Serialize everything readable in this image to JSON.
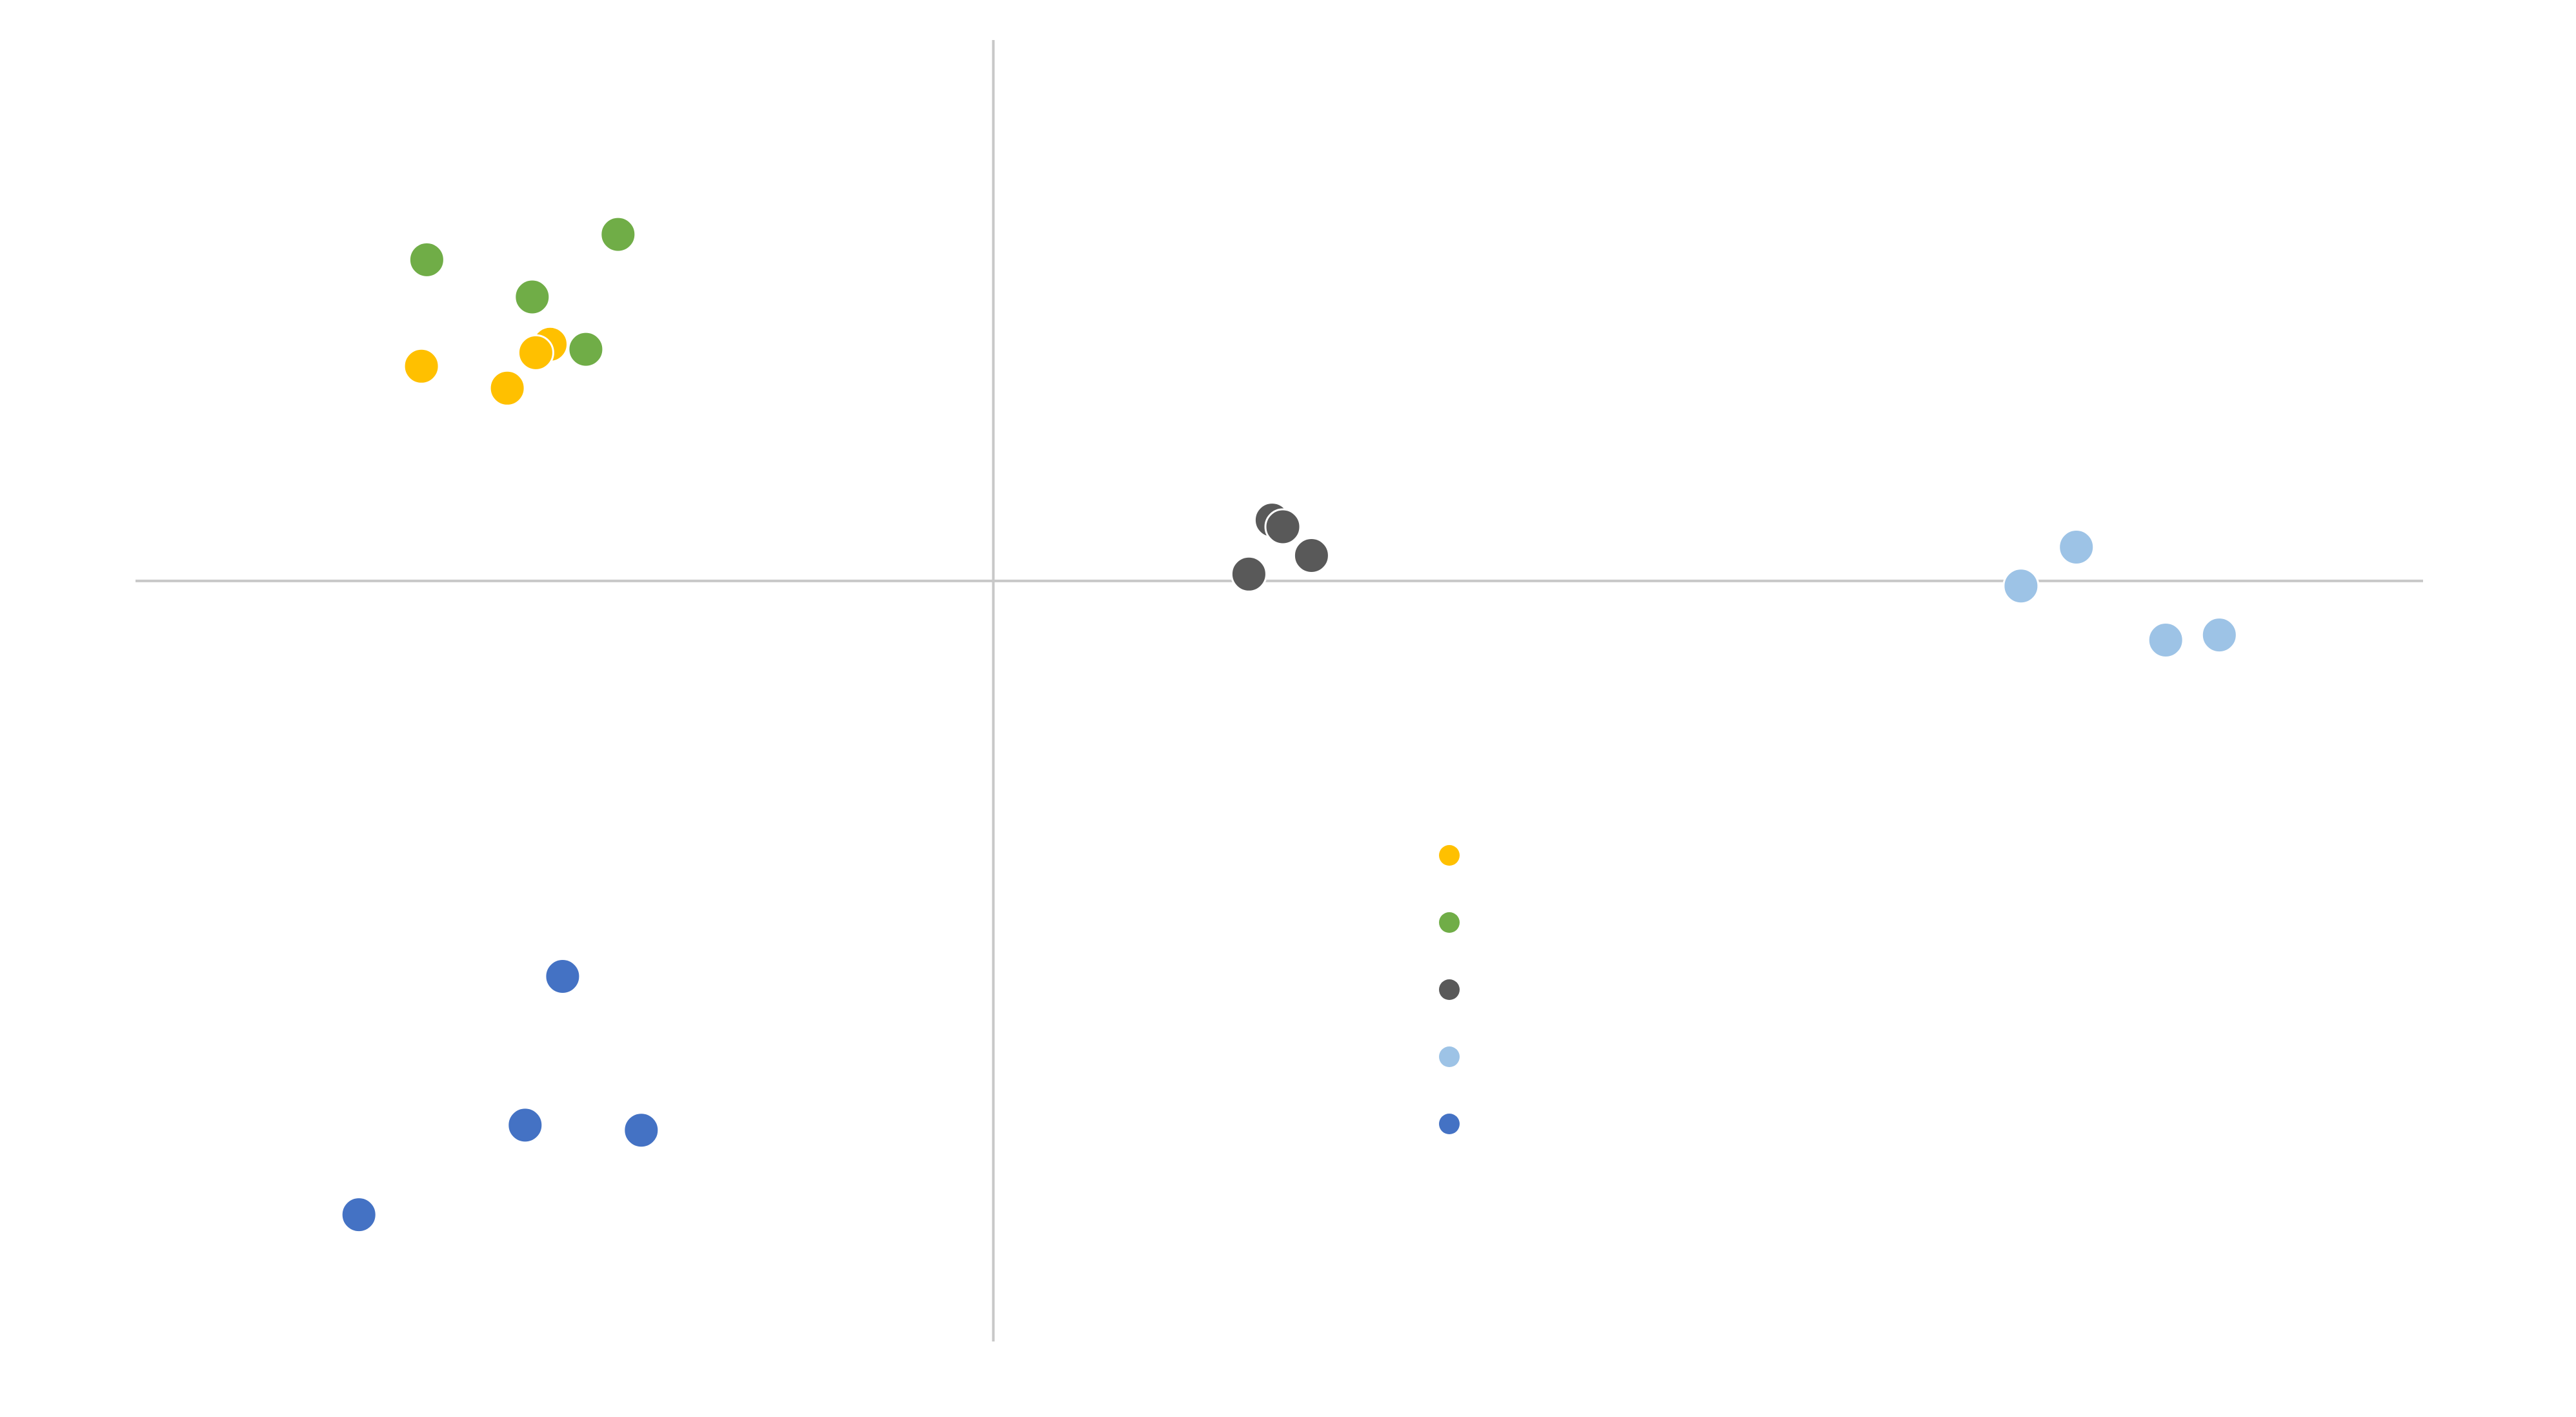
{
  "chart_data": {
    "type": "scatter",
    "title": "",
    "xlabel": "",
    "ylabel": "",
    "grid": false,
    "axes_cross_at_origin": true,
    "xlim": [
      -4.8,
      8.0
    ],
    "ylim": [
      -4.5,
      3.2
    ],
    "legend_position": "bottom-center",
    "series": [
      {
        "color": "#ffc000",
        "points": [
          {
            "x": -3.2,
            "y": 1.27
          },
          {
            "x": -2.72,
            "y": 1.14
          },
          {
            "x": -2.48,
            "y": 1.4
          },
          {
            "x": -2.56,
            "y": 1.35
          }
        ]
      },
      {
        "color": "#70ad47",
        "points": [
          {
            "x": -3.17,
            "y": 1.9
          },
          {
            "x": -2.58,
            "y": 1.68
          },
          {
            "x": -2.28,
            "y": 1.37
          },
          {
            "x": -2.1,
            "y": 2.05
          }
        ]
      },
      {
        "color": "#595959",
        "points": [
          {
            "x": 1.43,
            "y": 0.04
          },
          {
            "x": 1.56,
            "y": 0.36
          },
          {
            "x": 1.62,
            "y": 0.32
          },
          {
            "x": 1.78,
            "y": 0.15
          }
        ]
      },
      {
        "color": "#9dc3e6",
        "points": [
          {
            "x": 5.75,
            "y": -0.03
          },
          {
            "x": 6.06,
            "y": 0.2
          },
          {
            "x": 6.56,
            "y": -0.35
          },
          {
            "x": 6.86,
            "y": -0.32
          }
        ]
      },
      {
        "color": "#4472c4",
        "points": [
          {
            "x": -3.55,
            "y": -3.75
          },
          {
            "x": -2.62,
            "y": -3.22
          },
          {
            "x": -2.41,
            "y": -2.34
          },
          {
            "x": -1.97,
            "y": -3.25
          }
        ]
      }
    ]
  }
}
